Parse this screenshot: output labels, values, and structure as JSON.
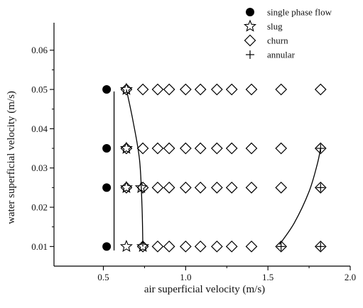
{
  "chart_data": {
    "type": "scatter",
    "xlabel": "air superficial velocity (m/s)",
    "ylabel": "water superficial velocity (m/s)",
    "xlim": [
      0.2,
      2.0
    ],
    "ylim": [
      0.005,
      0.067
    ],
    "x_ticks": [
      0.5,
      1.0,
      1.5,
      2.0
    ],
    "x_tick_labels": [
      "0.5",
      "1.0",
      "1.5",
      "2.0"
    ],
    "y_ticks": [
      0.01,
      0.02,
      0.03,
      0.04,
      0.05,
      0.06
    ],
    "y_tick_labels": [
      "0.01",
      "0.02",
      "0.03",
      "0.04",
      "0.05",
      "0.06"
    ],
    "grid": false,
    "legend_position": "top-right",
    "series": [
      {
        "name": "single phase flow",
        "marker": "filled-circle",
        "color": "#000000",
        "points": [
          [
            0.52,
            0.05
          ],
          [
            0.52,
            0.035
          ],
          [
            0.52,
            0.025
          ],
          [
            0.52,
            0.01
          ]
        ]
      },
      {
        "name": "slug",
        "marker": "open-star",
        "color": "#000000",
        "points": [
          [
            0.64,
            0.05
          ],
          [
            0.64,
            0.035
          ],
          [
            0.64,
            0.025
          ],
          [
            0.64,
            0.01
          ],
          [
            0.73,
            0.025
          ],
          [
            0.74,
            0.01
          ]
        ]
      },
      {
        "name": "churn",
        "marker": "open-diamond",
        "color": "#000000",
        "points": [
          [
            0.64,
            0.05
          ],
          [
            0.74,
            0.05
          ],
          [
            0.83,
            0.05
          ],
          [
            0.9,
            0.05
          ],
          [
            1.0,
            0.05
          ],
          [
            1.09,
            0.05
          ],
          [
            1.19,
            0.05
          ],
          [
            1.28,
            0.05
          ],
          [
            1.4,
            0.05
          ],
          [
            1.58,
            0.05
          ],
          [
            1.82,
            0.05
          ],
          [
            0.64,
            0.035
          ],
          [
            0.74,
            0.035
          ],
          [
            0.83,
            0.035
          ],
          [
            0.9,
            0.035
          ],
          [
            1.0,
            0.035
          ],
          [
            1.09,
            0.035
          ],
          [
            1.19,
            0.035
          ],
          [
            1.28,
            0.035
          ],
          [
            1.4,
            0.035
          ],
          [
            1.58,
            0.035
          ],
          [
            1.82,
            0.035
          ],
          [
            0.64,
            0.025
          ],
          [
            0.74,
            0.025
          ],
          [
            0.83,
            0.025
          ],
          [
            0.9,
            0.025
          ],
          [
            1.0,
            0.025
          ],
          [
            1.09,
            0.025
          ],
          [
            1.19,
            0.025
          ],
          [
            1.28,
            0.025
          ],
          [
            1.4,
            0.025
          ],
          [
            1.58,
            0.025
          ],
          [
            1.82,
            0.025
          ],
          [
            0.74,
            0.01
          ],
          [
            0.83,
            0.01
          ],
          [
            0.9,
            0.01
          ],
          [
            1.0,
            0.01
          ],
          [
            1.09,
            0.01
          ],
          [
            1.19,
            0.01
          ],
          [
            1.28,
            0.01
          ],
          [
            1.4,
            0.01
          ],
          [
            1.58,
            0.01
          ],
          [
            1.82,
            0.01
          ]
        ]
      },
      {
        "name": "annular",
        "marker": "plus",
        "color": "#000000",
        "points": [
          [
            1.82,
            0.035
          ],
          [
            1.82,
            0.025
          ],
          [
            1.58,
            0.01
          ],
          [
            1.82,
            0.01
          ]
        ]
      }
    ],
    "boundary_lines": [
      {
        "kind": "straight",
        "points": [
          [
            0.565,
            0.0495
          ],
          [
            0.565,
            0.009
          ]
        ]
      },
      {
        "kind": "smooth",
        "points": [
          [
            0.64,
            0.05
          ],
          [
            0.68,
            0.042
          ],
          [
            0.72,
            0.032
          ],
          [
            0.735,
            0.02
          ],
          [
            0.74,
            0.01
          ]
        ]
      },
      {
        "kind": "smooth",
        "points": [
          [
            1.57,
            0.0105
          ],
          [
            1.66,
            0.016
          ],
          [
            1.75,
            0.024
          ],
          [
            1.8,
            0.031
          ],
          [
            1.82,
            0.035
          ]
        ]
      }
    ]
  }
}
